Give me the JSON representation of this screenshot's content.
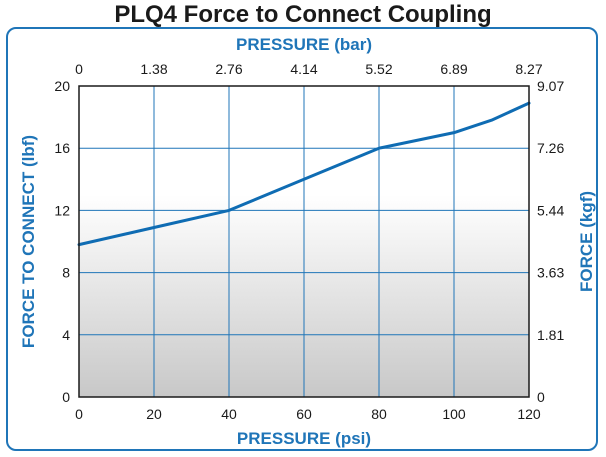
{
  "chart_data": {
    "type": "line",
    "title": "PLQ4 Force to Connect Coupling",
    "xlabel": "PRESSURE (psi)",
    "xlabel_top": "PRESSURE (bar)",
    "ylabel": "FORCE TO CONNECT (lbf)",
    "ylabel_right": "FORCE (kgf)",
    "xlim": [
      0,
      120
    ],
    "ylim": [
      0,
      20
    ],
    "x_ticks": [
      0,
      20,
      40,
      60,
      80,
      100,
      120
    ],
    "y_ticks": [
      0,
      4,
      8,
      12,
      16,
      20
    ],
    "x_ticks_top": [
      "0",
      "1.38",
      "2.76",
      "4.14",
      "5.52",
      "6.89",
      "8.27"
    ],
    "y_ticks_right": [
      "0",
      "1.81",
      "3.63",
      "5.44",
      "7.26",
      "9.07"
    ],
    "grid": true,
    "series": [
      {
        "x": [
          0,
          20,
          40,
          60,
          80,
          100,
          110,
          120
        ],
        "y": [
          9.8,
          10.9,
          12.0,
          14.0,
          16.0,
          17.0,
          17.8,
          18.9
        ]
      }
    ],
    "colors": {
      "line": "#0f6cb3",
      "grid": "#1f75b8",
      "accent": "#1f75b8",
      "gradient_top": "#ffffff",
      "gradient_bottom": "#c8c8c8"
    }
  }
}
